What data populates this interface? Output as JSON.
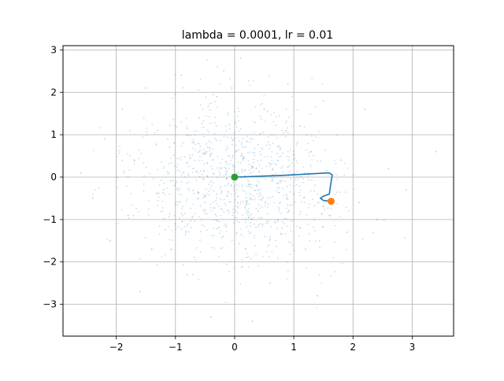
{
  "chart_data": {
    "type": "scatter",
    "title": "lambda = 0.0001, lr = 0.01",
    "xlabel": "",
    "ylabel": "",
    "xlim": [
      -2.9,
      3.7
    ],
    "ylim": [
      -3.75,
      3.1
    ],
    "grid": true,
    "x_ticks": [
      -2,
      -1,
      0,
      1,
      2,
      3
    ],
    "y_ticks": [
      -3,
      -2,
      -1,
      0,
      1,
      2,
      3
    ],
    "x_tick_labels": [
      "−2",
      "−1",
      "0",
      "1",
      "2",
      "3"
    ],
    "y_tick_labels": [
      "−3",
      "−2",
      "−1",
      "0",
      "1",
      "2",
      "3"
    ],
    "series": [
      {
        "kind": "scatter-cloud",
        "color": "#1f77b4",
        "opacity": 0.35,
        "description_points": [
          [
            -2.6,
            0.1
          ],
          [
            -2.4,
            -0.5
          ],
          [
            -2.2,
            0.9
          ],
          [
            -2.1,
            -1.5
          ],
          [
            -1.9,
            1.6
          ],
          [
            -1.8,
            -0.9
          ],
          [
            -1.7,
            0.4
          ],
          [
            -1.6,
            -2.7
          ],
          [
            -1.5,
            2.1
          ],
          [
            -1.4,
            -1.7
          ],
          [
            -1.3,
            1.1
          ],
          [
            -1.2,
            -0.3
          ],
          [
            -1.1,
            0.7
          ],
          [
            -1.0,
            -1.1
          ],
          [
            -0.9,
            2.4
          ],
          [
            -0.8,
            -2.3
          ],
          [
            -0.7,
            0.2
          ],
          [
            -0.6,
            1.4
          ],
          [
            -0.5,
            -0.6
          ],
          [
            -0.4,
            -3.3
          ],
          [
            -0.3,
            1.9
          ],
          [
            -0.2,
            -1.4
          ],
          [
            -0.1,
            0.5
          ],
          [
            0.0,
            -0.2
          ],
          [
            0.1,
            2.8
          ],
          [
            0.2,
            -1.9
          ],
          [
            0.3,
            0.9
          ],
          [
            0.4,
            -0.8
          ],
          [
            0.5,
            1.6
          ],
          [
            0.6,
            -2.5
          ],
          [
            0.7,
            0.3
          ],
          [
            0.8,
            -1.2
          ],
          [
            0.9,
            2.2
          ],
          [
            1.0,
            -0.4
          ],
          [
            1.1,
            1.2
          ],
          [
            1.2,
            -1.7
          ],
          [
            1.3,
            0.6
          ],
          [
            1.4,
            -2.8
          ],
          [
            1.5,
            1.8
          ],
          [
            1.6,
            -0.9
          ],
          [
            1.8,
            0.4
          ],
          [
            1.9,
            -1.3
          ],
          [
            2.0,
            1.0
          ],
          [
            2.1,
            -0.6
          ],
          [
            2.2,
            1.6
          ],
          [
            2.4,
            -1.0
          ],
          [
            2.6,
            0.2
          ],
          [
            2.9,
            -0.3
          ],
          [
            3.4,
            0.6
          ],
          [
            0.3,
            -3.4
          ]
        ]
      },
      {
        "kind": "line",
        "color": "#1f77b4",
        "points": [
          [
            0.0,
            0.0
          ],
          [
            0.8,
            0.04
          ],
          [
            1.6,
            0.1
          ],
          [
            1.65,
            0.05
          ],
          [
            1.62,
            -0.2
          ],
          [
            1.6,
            -0.4
          ],
          [
            1.5,
            -0.45
          ],
          [
            1.45,
            -0.5
          ],
          [
            1.5,
            -0.55
          ],
          [
            1.6,
            -0.57
          ]
        ]
      },
      {
        "kind": "point",
        "color": "#2ca02c",
        "x": 0.0,
        "y": 0.0
      },
      {
        "kind": "point",
        "color": "#ff7f0e",
        "x": 1.63,
        "y": -0.57
      }
    ]
  }
}
